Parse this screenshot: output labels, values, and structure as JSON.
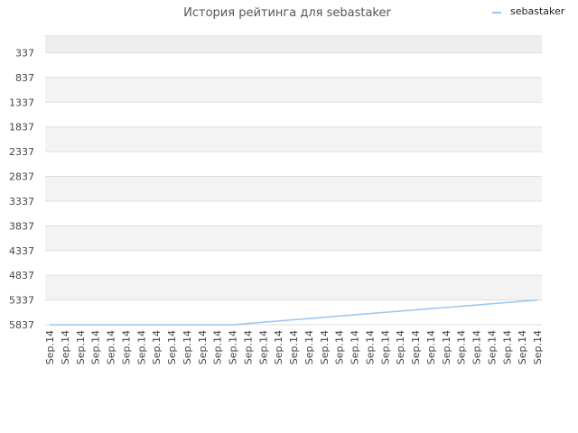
{
  "chart_data": {
    "type": "line",
    "title": "История рейтинга для sebastaker",
    "xlabel": "",
    "ylabel": "",
    "y_axis_inverted": true,
    "ylim": [
      5837,
      0
    ],
    "y_ticks": [
      337,
      837,
      1337,
      1837,
      2337,
      2837,
      3337,
      3837,
      4337,
      4837,
      5337,
      5837
    ],
    "x_tick_labels": [
      "Sep.14",
      "Sep.14",
      "Sep.14",
      "Sep.14",
      "Sep.14",
      "Sep.14",
      "Sep.14",
      "Sep.14",
      "Sep.14",
      "Sep.14",
      "Sep.14",
      "Sep.14",
      "Sep.14",
      "Sep.14",
      "Sep.14",
      "Sep.14",
      "Sep.14",
      "Sep.14",
      "Sep.14",
      "Sep.14",
      "Sep.14",
      "Sep.14",
      "Sep.14",
      "Sep.14",
      "Sep.14",
      "Sep.14",
      "Sep.14",
      "Sep.14",
      "Sep.14",
      "Sep.14",
      "Sep.14",
      "Sep.14",
      "Sep.14"
    ],
    "grid": true,
    "legend_position": "top-right",
    "series": [
      {
        "name": "sebastaker",
        "color": "#99c5ee",
        "values": [
          5837,
          5837,
          5837,
          5837,
          5837,
          5837,
          5837,
          5837,
          5837,
          5837,
          5837,
          5837,
          5837,
          5812,
          5787,
          5762,
          5737,
          5712,
          5687,
          5662,
          5637,
          5612,
          5587,
          5562,
          5537,
          5512,
          5487,
          5462,
          5437,
          5412,
          5387,
          5362,
          5337
        ]
      }
    ]
  }
}
